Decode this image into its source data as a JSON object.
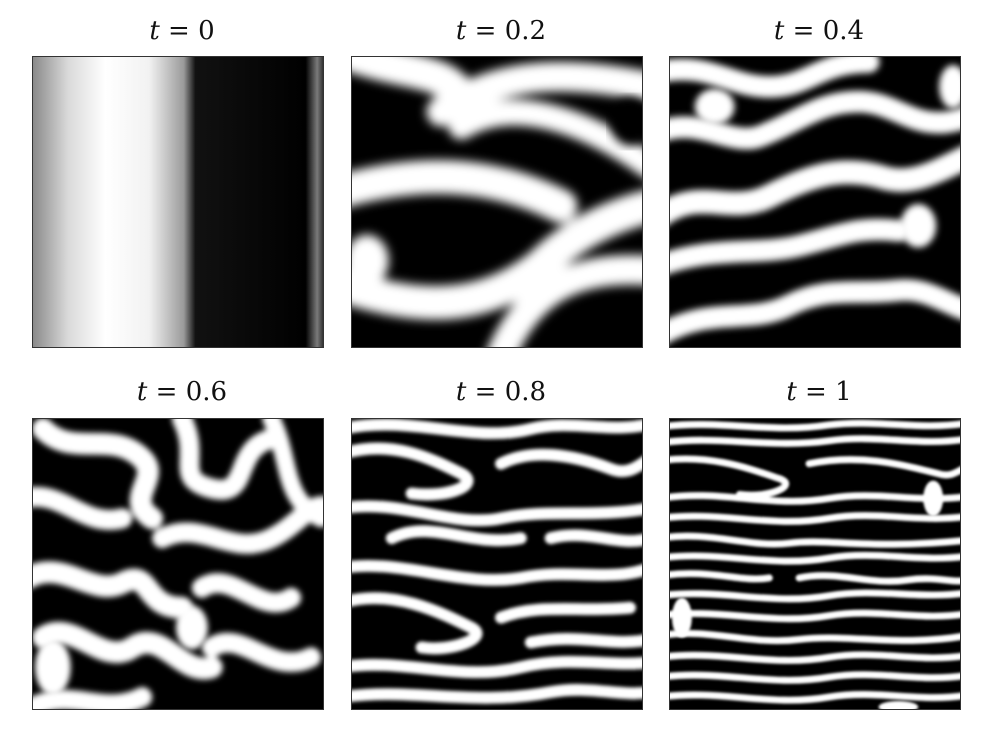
{
  "figure": {
    "panels": [
      {
        "var": "t",
        "eq": "=",
        "value": "0"
      },
      {
        "var": "t",
        "eq": "=",
        "value": "0.2"
      },
      {
        "var": "t",
        "eq": "=",
        "value": "0.4"
      },
      {
        "var": "t",
        "eq": "=",
        "value": "0.6"
      },
      {
        "var": "t",
        "eq": "=",
        "value": "0.8"
      },
      {
        "var": "t",
        "eq": "=",
        "value": "1"
      }
    ],
    "colors": {
      "dark": "#000000",
      "light": "#ffffff"
    }
  }
}
